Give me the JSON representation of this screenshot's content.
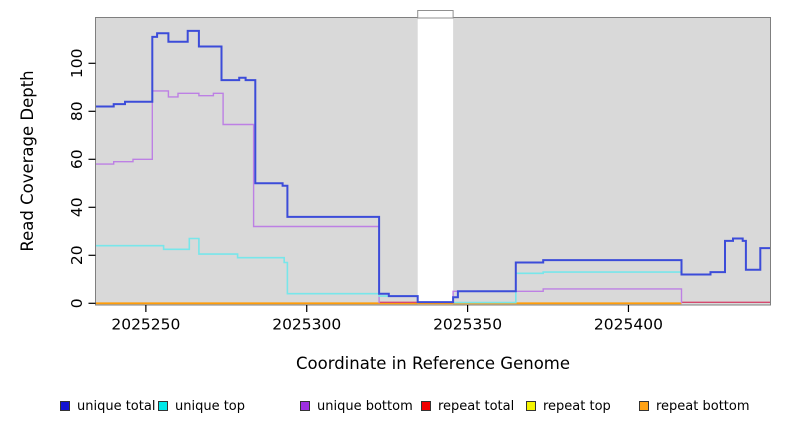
{
  "chart_data": {
    "type": "line",
    "subtype": "step",
    "title": "",
    "xlabel": "Coordinate in Reference Genome",
    "ylabel": "Read Coverage Depth",
    "x_ticks": [
      2025250,
      2025300,
      2025350,
      2025400
    ],
    "y_ticks": [
      0,
      20,
      40,
      60,
      80,
      100
    ],
    "x_range": [
      2025234.5,
      2025444
    ],
    "y_range": [
      0,
      119
    ],
    "grid": false,
    "plot_background": "#d9d9d9",
    "box_color": "#7f7f7f",
    "gap_band": {
      "x_start": 2025334.5,
      "x_end": 2025345.5,
      "color": "#ffffff"
    },
    "series": [
      {
        "name": "repeat top",
        "color": "#f2f200",
        "width": 1.4,
        "segments": [
          [
            2025234.5,
            2025416.5,
            0
          ]
        ]
      },
      {
        "name": "repeat bottom",
        "color": "#ff9d0a",
        "width": 1.8,
        "segments": [
          [
            2025234.5,
            2025416.5,
            0
          ]
        ]
      },
      {
        "name": "repeat total",
        "color": "#d4496f",
        "width": 1.4,
        "segments": [
          [
            2025322.5,
            2025334.5,
            0.4
          ],
          [
            2025416.5,
            2025444,
            0.4
          ]
        ]
      },
      {
        "name": "unique bottom",
        "color": "#bd80e4",
        "width": 1.4,
        "segments": [
          [
            2025234.5,
            2025240,
            58
          ],
          [
            2025240,
            2025246,
            59
          ],
          [
            2025246,
            2025252,
            60
          ],
          [
            2025252,
            2025257,
            88.5
          ],
          [
            2025257,
            2025260,
            86
          ],
          [
            2025260,
            2025266.5,
            87.5
          ],
          [
            2025266.5,
            2025271,
            86.5
          ],
          [
            2025271,
            2025274,
            87.5
          ],
          [
            2025274,
            2025283.5,
            74.5
          ],
          [
            2025283.5,
            2025322.5,
            32
          ],
          [
            2025322.5,
            2025322.5,
            0
          ],
          [
            2025345.5,
            2025345.5,
            0
          ],
          [
            2025345.5,
            2025373.5,
            5
          ],
          [
            2025373.5,
            2025416.5,
            6
          ],
          [
            2025416.5,
            2025416.5,
            0
          ]
        ]
      },
      {
        "name": "unique top",
        "color": "#78e6ea",
        "width": 1.6,
        "segments": [
          [
            2025234.5,
            2025255.5,
            24
          ],
          [
            2025255.5,
            2025263.5,
            22.5
          ],
          [
            2025263.5,
            2025266.5,
            27
          ],
          [
            2025266.5,
            2025278.5,
            20.5
          ],
          [
            2025278.5,
            2025293,
            19
          ],
          [
            2025293,
            2025294,
            17
          ],
          [
            2025294,
            2025322.5,
            4
          ],
          [
            2025322.5,
            2025334.5,
            3
          ],
          [
            2025334.5,
            2025334.5,
            0
          ],
          [
            2025345.5,
            2025365,
            0.3
          ],
          [
            2025365,
            2025373.5,
            12.5
          ],
          [
            2025373.5,
            2025416.5,
            13
          ]
        ]
      },
      {
        "name": "unique total",
        "color": "#3c4cd9",
        "width": 2,
        "segments": [
          [
            2025234.5,
            2025240,
            82
          ],
          [
            2025240,
            2025243.5,
            83
          ],
          [
            2025243.5,
            2025252,
            84
          ],
          [
            2025252,
            2025253.5,
            111
          ],
          [
            2025253.5,
            2025257,
            112.5
          ],
          [
            2025257,
            2025263,
            109
          ],
          [
            2025263,
            2025266.5,
            113.5
          ],
          [
            2025266.5,
            2025273.5,
            107
          ],
          [
            2025273.5,
            2025279,
            93
          ],
          [
            2025279,
            2025281,
            94
          ],
          [
            2025281,
            2025284,
            93
          ],
          [
            2025284,
            2025292.5,
            50
          ],
          [
            2025292.5,
            2025294,
            49
          ],
          [
            2025294,
            2025322.5,
            36
          ],
          [
            2025322.5,
            2025325.5,
            4
          ],
          [
            2025325.5,
            2025334.5,
            3
          ],
          [
            2025334.5,
            2025345.5,
            0.5
          ],
          [
            2025345.5,
            2025347,
            2.5
          ],
          [
            2025347,
            2025365,
            5
          ],
          [
            2025365,
            2025373.5,
            17
          ],
          [
            2025373.5,
            2025416.5,
            18
          ],
          [
            2025416.5,
            2025425.5,
            12
          ],
          [
            2025425.5,
            2025430,
            13
          ],
          [
            2025430,
            2025432.5,
            26
          ],
          [
            2025432.5,
            2025435.5,
            27
          ],
          [
            2025435.5,
            2025436.5,
            26
          ],
          [
            2025436.5,
            2025441,
            14
          ],
          [
            2025441,
            2025444,
            23
          ]
        ]
      }
    ],
    "legend": [
      {
        "label": "unique total",
        "swatch_color": "#1313d2"
      },
      {
        "label": "unique top",
        "swatch_color": "#00e8e8"
      },
      {
        "label": "unique bottom",
        "swatch_color": "#9d2fe0"
      },
      {
        "label": "repeat total",
        "swatch_color": "#f00000"
      },
      {
        "label": "repeat top",
        "swatch_color": "#f4f400"
      },
      {
        "label": "repeat bottom",
        "swatch_color": "#ffa214"
      }
    ],
    "legend_position": "bottom"
  }
}
